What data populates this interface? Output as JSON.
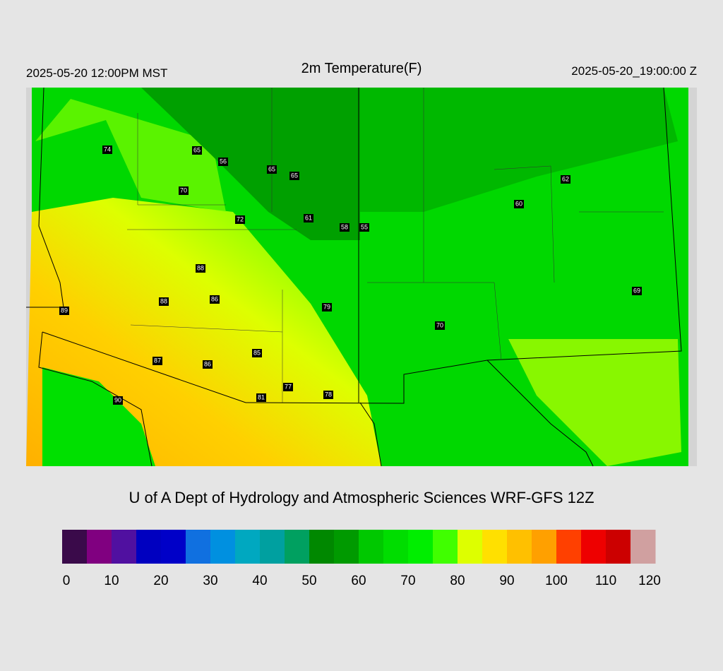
{
  "header": {
    "left": "2025-05-20 12:00PM MST",
    "title": "2m Temperature(F)",
    "right": "2025-05-20_19:00:00 Z"
  },
  "stations": [
    74,
    65,
    56,
    65,
    65,
    70,
    72,
    61,
    58,
    55,
    60,
    62,
    88,
    88,
    86,
    89,
    79,
    69,
    70,
    87,
    86,
    85,
    90,
    81,
    77,
    78
  ],
  "footer": "U of A Dept of Hydrology and Atmospheric Sciences WRF-GFS 12Z",
  "colorbar": {
    "lim": [
      0,
      120
    ],
    "ticks": [
      0,
      10,
      20,
      30,
      40,
      50,
      60,
      70,
      80,
      90,
      100,
      110,
      120
    ],
    "colors": [
      "#3a0a4a",
      "#800080",
      "#5010a0",
      "#0000c0",
      "#0000c8",
      "#1070e0",
      "#0090e0",
      "#00a8c0",
      "#00a0a0",
      "#00a060",
      "#008800",
      "#009a00",
      "#00c800",
      "#00dd00",
      "#00ee00",
      "#40ff00",
      "#ddff00",
      "#ffe000",
      "#ffc000",
      "#ffa000",
      "#ff4000",
      "#ee0000",
      "#cc0000",
      "#d0a0a0"
    ]
  }
}
